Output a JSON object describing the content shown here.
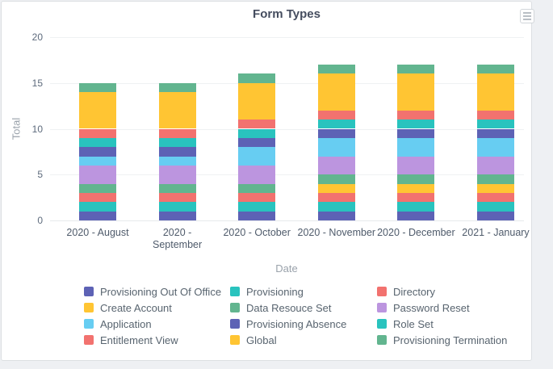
{
  "window": {
    "page_background": "#eef0f3",
    "card_background": "#ffffff",
    "card_border_color": "#dcdfe2"
  },
  "header": {
    "menu_icon": "hamburger-menu-icon"
  },
  "chart_data": {
    "type": "bar",
    "stacked": true,
    "title": "Form Types",
    "xlabel": "Date",
    "ylabel": "Total",
    "ylim": [
      0,
      20
    ],
    "yticks": [
      0,
      5,
      10,
      15,
      20
    ],
    "grid": true,
    "legend_position": "bottom",
    "categories": [
      "2020 - August",
      "2020 -\nSeptember",
      "2020 - October",
      "2020 - November",
      "2020 - December",
      "2021 - January"
    ],
    "series": [
      {
        "name": "Provisioning Out Of Office",
        "color": "#5d62b5",
        "values": [
          1,
          1,
          1,
          1,
          1,
          1
        ]
      },
      {
        "name": "Provisioning",
        "color": "#29c3be",
        "values": [
          1,
          1,
          1,
          1,
          1,
          1
        ]
      },
      {
        "name": "Directory",
        "color": "#f2726f",
        "values": [
          1,
          1,
          1,
          1,
          1,
          1
        ]
      },
      {
        "name": "Create Account",
        "color": "#ffc533",
        "values": [
          0,
          0,
          0,
          1,
          1,
          1
        ]
      },
      {
        "name": "Data Resouce Set",
        "color": "#62b58f",
        "values": [
          1,
          1,
          1,
          1,
          1,
          1
        ]
      },
      {
        "name": "Password Reset",
        "color": "#bc95df",
        "values": [
          2,
          2,
          2,
          2,
          2,
          2
        ]
      },
      {
        "name": "Application",
        "color": "#67cdf2",
        "values": [
          1,
          1,
          2,
          2,
          2,
          2
        ]
      },
      {
        "name": "Provisioning Absence",
        "color": "#5d62b5",
        "values": [
          1,
          1,
          1,
          1,
          1,
          1
        ]
      },
      {
        "name": "Role Set",
        "color": "#29c3be",
        "values": [
          1,
          1,
          1,
          1,
          1,
          1
        ]
      },
      {
        "name": "Entitlement View",
        "color": "#f2726f",
        "values": [
          1,
          1,
          1,
          1,
          1,
          1
        ]
      },
      {
        "name": "Global",
        "color": "#ffc533",
        "values": [
          4,
          4,
          4,
          4,
          4,
          4
        ]
      },
      {
        "name": "Provisioning Termination",
        "color": "#62b58f",
        "values": [
          1,
          1,
          1,
          1,
          1,
          1
        ]
      }
    ]
  }
}
